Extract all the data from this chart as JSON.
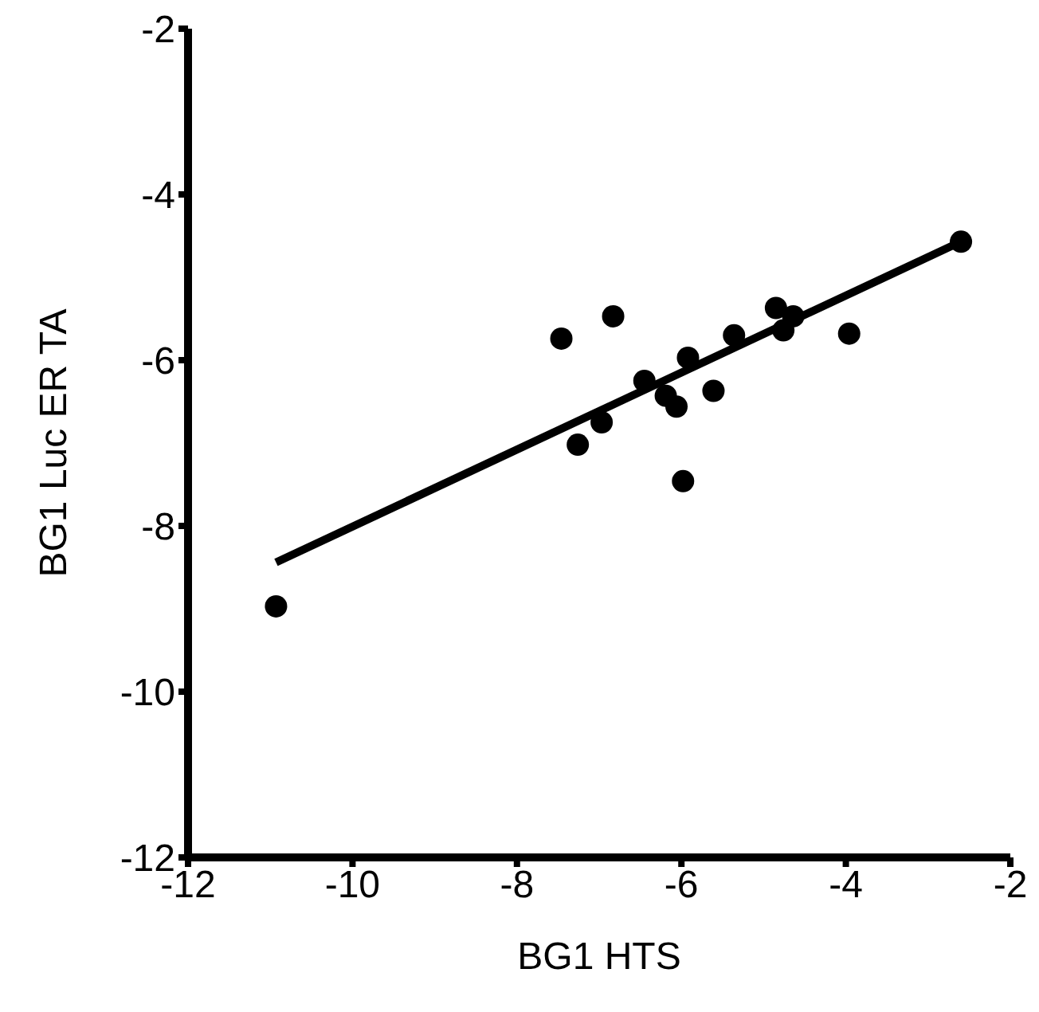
{
  "chart_data": {
    "type": "scatter",
    "xlabel": "BG1 HTS",
    "ylabel": "BG1 Luc ER TA",
    "xlim": [
      -12,
      -2
    ],
    "ylim": [
      -12,
      -2
    ],
    "xticks": [
      -12,
      -10,
      -8,
      -6,
      -4,
      -2
    ],
    "yticks": [
      -12,
      -10,
      -8,
      -6,
      -4,
      -2
    ],
    "grid": false,
    "legend": false,
    "marker": "circle",
    "series": [
      {
        "color": "#000000",
        "x": [
          -10.93,
          -2.6,
          -7.46,
          -6.83,
          -7.26,
          -6.97,
          -6.45,
          -6.19,
          -6.06,
          -5.92,
          -5.61,
          -5.98,
          -5.36,
          -4.85,
          -4.76,
          -4.64,
          -3.96
        ],
        "values": [
          -8.97,
          -4.57,
          -5.74,
          -5.47,
          -7.02,
          -6.75,
          -6.25,
          -6.43,
          -6.56,
          -5.97,
          -6.37,
          -7.46,
          -5.7,
          -5.37,
          -5.64,
          -5.47,
          -5.68
        ]
      },
      {
        "type": "line",
        "color": "#000000",
        "x": [
          -10.93,
          -2.6
        ],
        "values": [
          -8.44,
          -4.57
        ],
        "marker": "none",
        "line_style": "solid"
      }
    ]
  }
}
